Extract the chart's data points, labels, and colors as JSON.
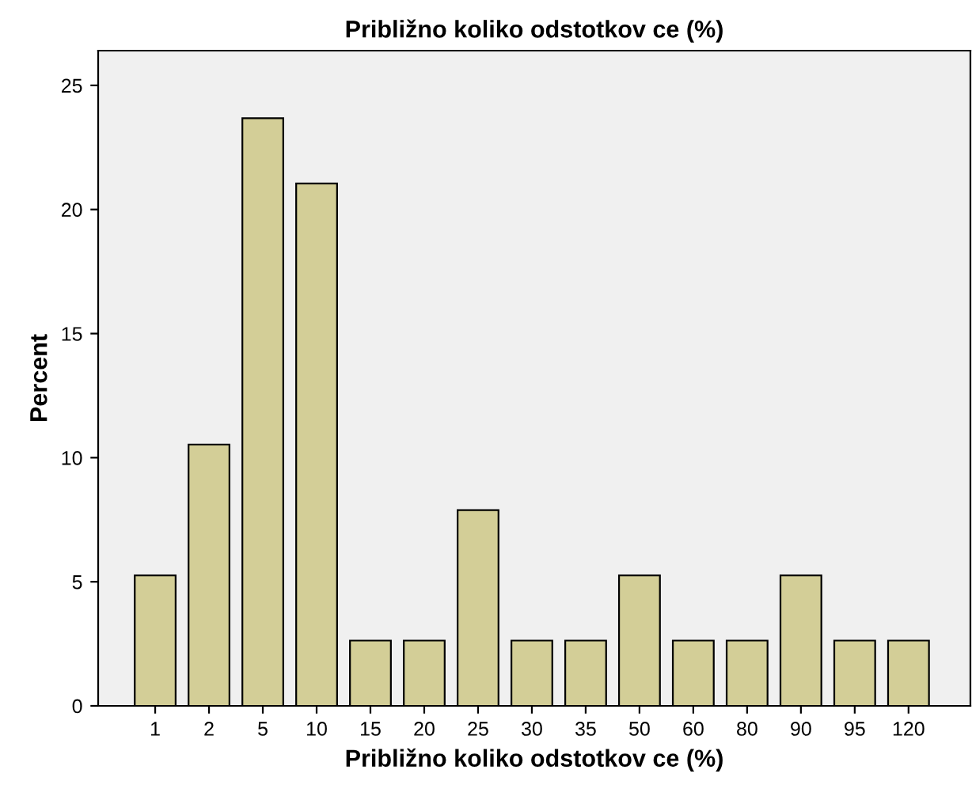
{
  "chart_data": {
    "type": "bar",
    "title": "Približno koliko odstotkov ce (%)",
    "xlabel": "Približno koliko odstotkov ce (%)",
    "ylabel": "Percent",
    "categories": [
      "1",
      "2",
      "5",
      "10",
      "15",
      "20",
      "25",
      "30",
      "35",
      "50",
      "60",
      "80",
      "90",
      "95",
      "120"
    ],
    "values": [
      5.26,
      10.53,
      23.68,
      21.05,
      2.63,
      2.63,
      7.89,
      2.63,
      2.63,
      5.26,
      2.63,
      2.63,
      5.26,
      2.63,
      2.63
    ],
    "color": "#d3ce97",
    "ylim": [
      0,
      26.4
    ],
    "yticks": [
      0,
      5,
      10,
      15,
      20,
      25
    ],
    "grid": false,
    "legend": false
  }
}
